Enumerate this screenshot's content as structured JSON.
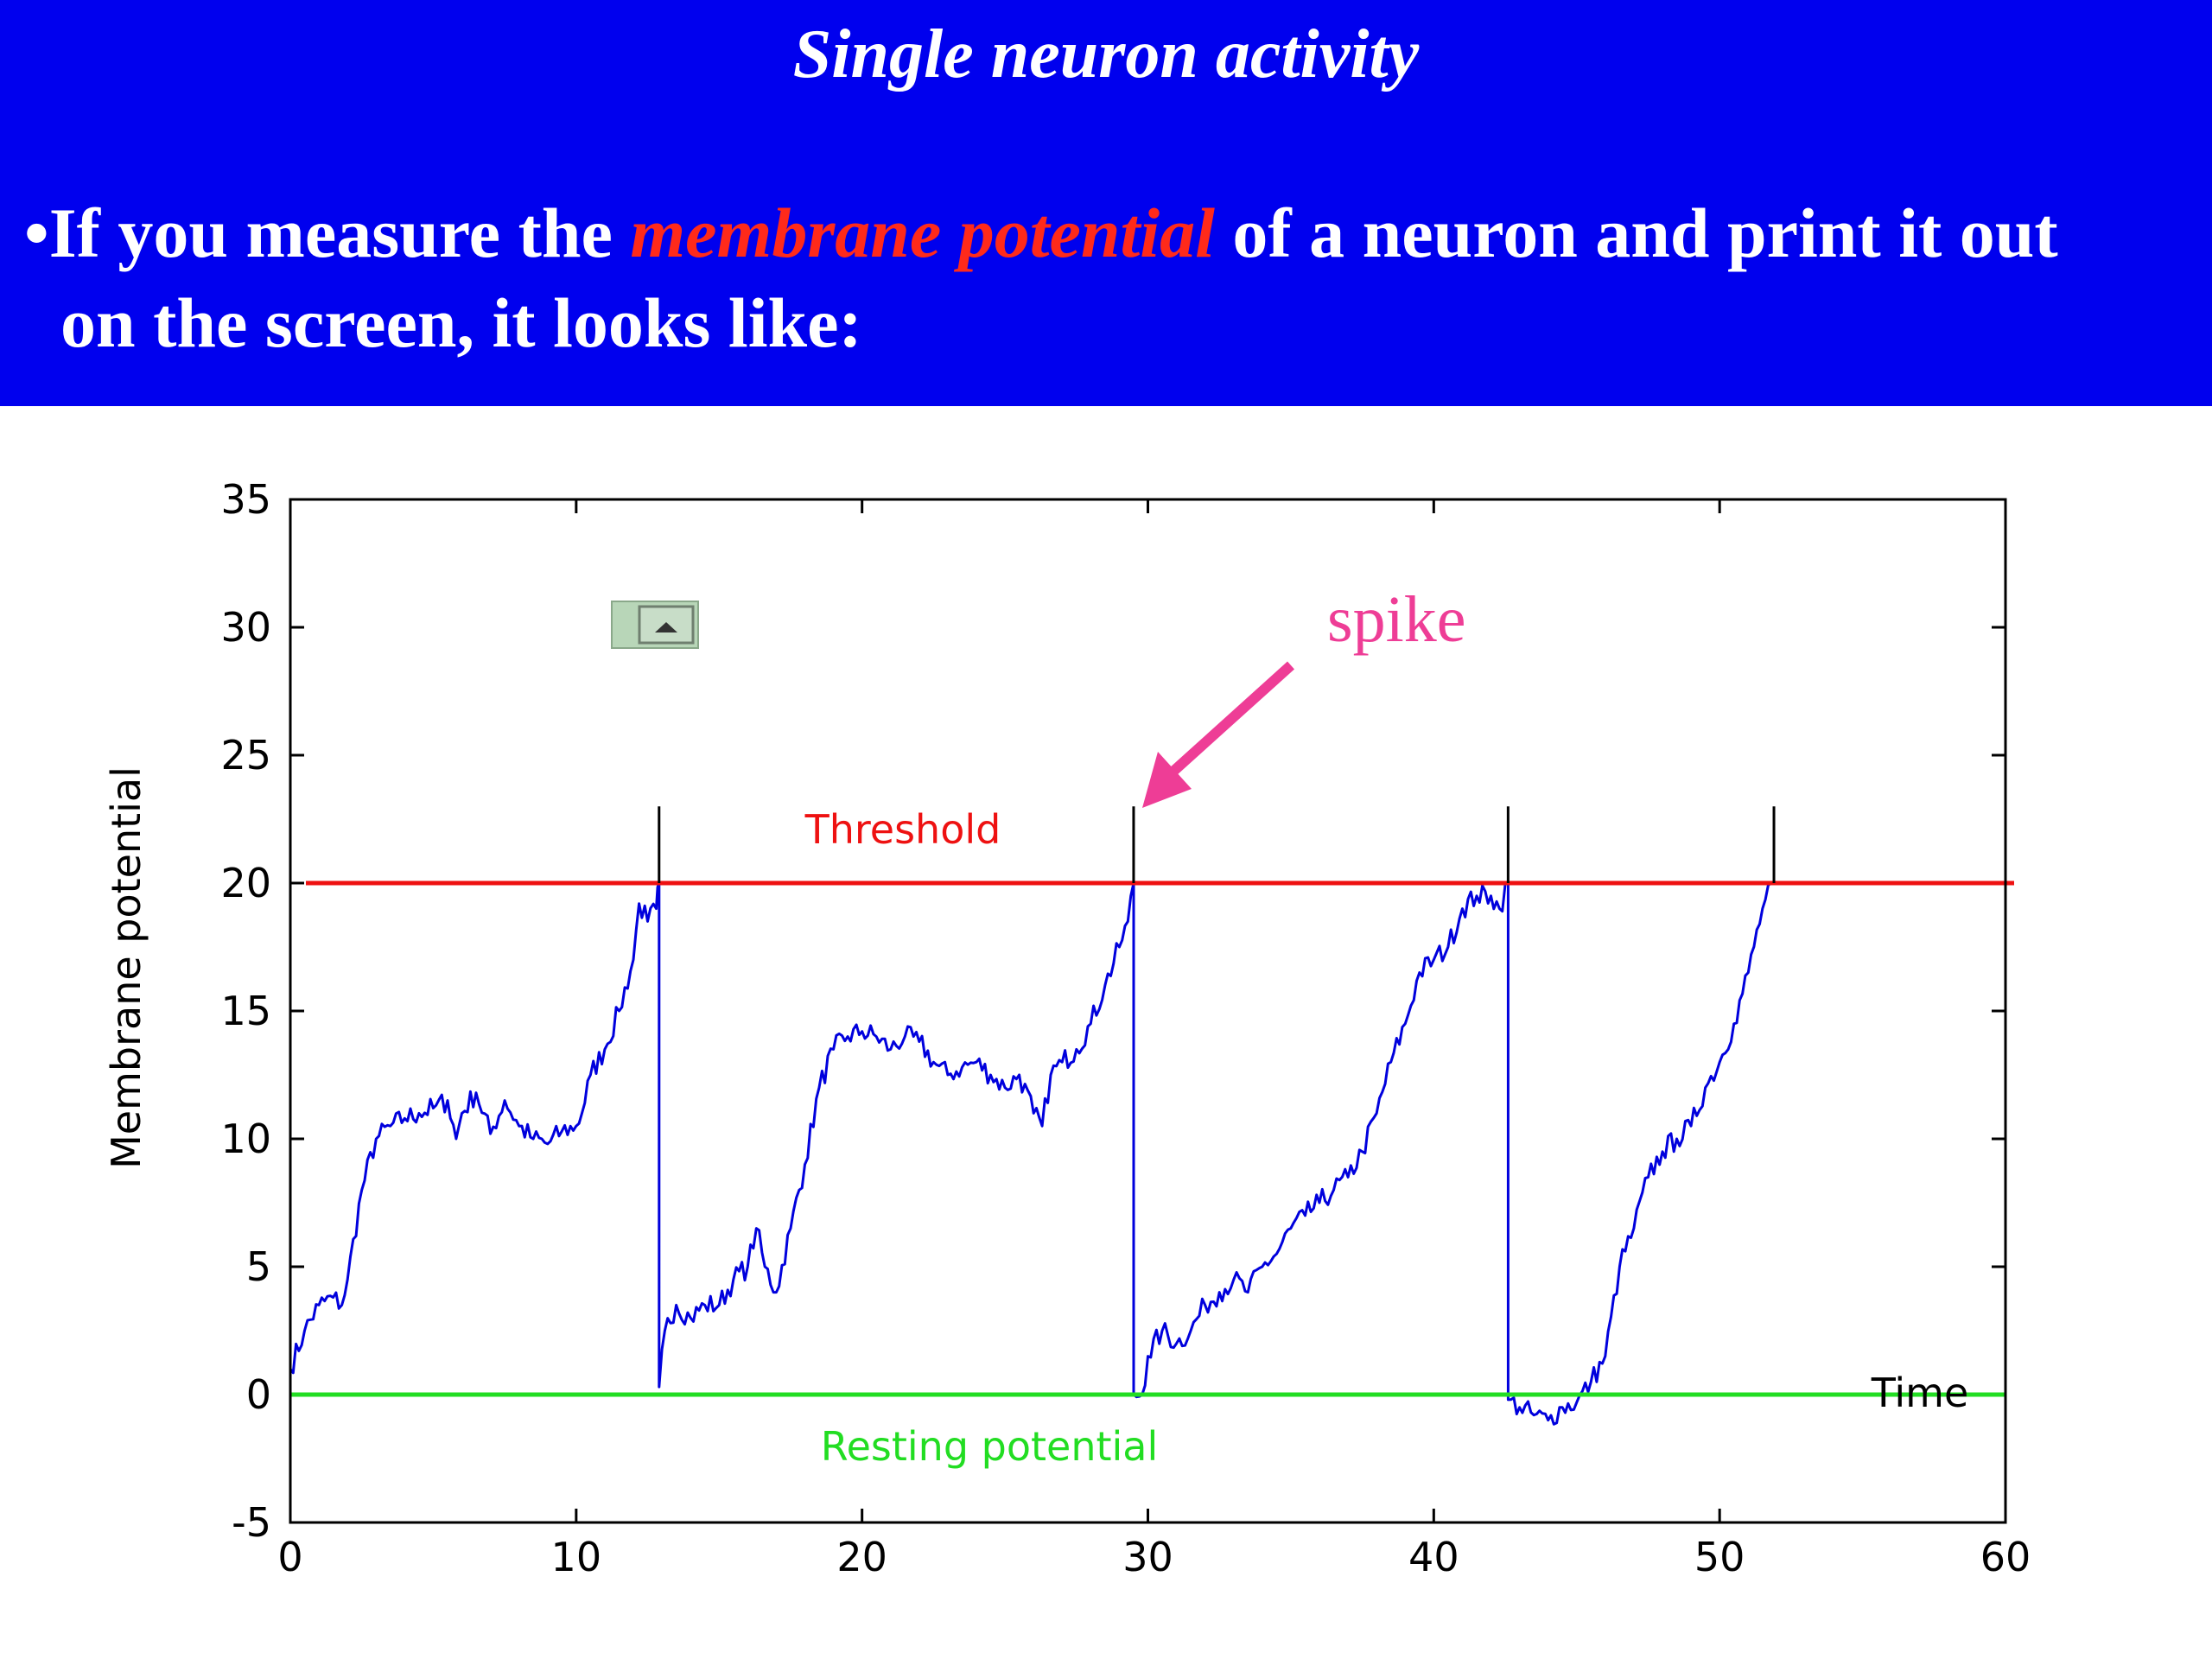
{
  "slide": {
    "title": "Single neuron activity",
    "bullet": "•",
    "text_before": "If you measure the ",
    "text_highlight": "membrane potential",
    "text_after": " of a neuron and print it out",
    "text_line2": "on the screen, it  looks like:"
  },
  "colors": {
    "header_bg": "#0000ee",
    "highlight": "#ff2a1a",
    "trace": "#0000dd",
    "threshold": "#ee1111",
    "resting": "#22dd22",
    "spike_annotation": "#ee3d96"
  },
  "chart_data": {
    "type": "line",
    "title": "",
    "xlabel": "Time",
    "ylabel": "Membrane potential",
    "xlim": [
      0,
      60
    ],
    "ylim": [
      -5,
      35
    ],
    "x_ticks": [
      0,
      10,
      20,
      30,
      40,
      50,
      60
    ],
    "y_ticks": [
      -5,
      0,
      5,
      10,
      15,
      20,
      25,
      30,
      35
    ],
    "grid": false,
    "threshold": {
      "label": "Threshold",
      "value": 20
    },
    "resting": {
      "label": "Resting potential",
      "value": 0
    },
    "spike_times": [
      12.9,
      29.5,
      42.6,
      51.9
    ],
    "spike_peak": 23,
    "annotation": {
      "text": "spike",
      "target_x": 29.5,
      "target_y": 23
    },
    "series": [
      {
        "values": [
          [
            0,
            1
          ],
          [
            0.5,
            2.5
          ],
          [
            1,
            3.5
          ],
          [
            1.5,
            3.8
          ],
          [
            1.8,
            3.5
          ],
          [
            2,
            4.5
          ],
          [
            2.5,
            8
          ],
          [
            3,
            10
          ],
          [
            3.5,
            10.5
          ],
          [
            4,
            10.8
          ],
          [
            4.5,
            11
          ],
          [
            5,
            11.2
          ],
          [
            5.5,
            11.5
          ],
          [
            5.8,
            10
          ],
          [
            6,
            11
          ],
          [
            6.5,
            11.8
          ],
          [
            7,
            10.2
          ],
          [
            7.5,
            11.5
          ],
          [
            8,
            10.5
          ],
          [
            8.5,
            10
          ],
          [
            9,
            9.8
          ],
          [
            9.5,
            10.3
          ],
          [
            10,
            10.5
          ],
          [
            10.2,
            11
          ],
          [
            10.5,
            12.5
          ],
          [
            11,
            13.5
          ],
          [
            11.5,
            15
          ],
          [
            12,
            17
          ],
          [
            12.2,
            19.2
          ],
          [
            12.5,
            18.5
          ],
          [
            12.8,
            19
          ],
          [
            12.9,
            20
          ],
          [
            12.9,
            0.3
          ],
          [
            13.1,
            2.5
          ],
          [
            13.5,
            3.5
          ],
          [
            14,
            3
          ],
          [
            14.5,
            3.5
          ],
          [
            15,
            3.5
          ],
          [
            15.5,
            4.5
          ],
          [
            16,
            5
          ],
          [
            16.3,
            6.5
          ],
          [
            16.6,
            5
          ],
          [
            17,
            4
          ],
          [
            17.5,
            6.5
          ],
          [
            18,
            9
          ],
          [
            18.5,
            12
          ],
          [
            19,
            13.5
          ],
          [
            19.5,
            14
          ],
          [
            20,
            14.2
          ],
          [
            20.5,
            14
          ],
          [
            21,
            13.5
          ],
          [
            21.5,
            14
          ],
          [
            22,
            13.8
          ],
          [
            22.5,
            13
          ],
          [
            23,
            12.5
          ],
          [
            23.5,
            12.8
          ],
          [
            24,
            13
          ],
          [
            24.5,
            12.5
          ],
          [
            25,
            12
          ],
          [
            25.5,
            12.5
          ],
          [
            26,
            11
          ],
          [
            26.3,
            10.5
          ],
          [
            26.6,
            12.5
          ],
          [
            27,
            13
          ],
          [
            27.5,
            13.5
          ],
          [
            28,
            14.5
          ],
          [
            28.5,
            16
          ],
          [
            29,
            17.5
          ],
          [
            29.3,
            18.5
          ],
          [
            29.5,
            20
          ],
          [
            29.5,
            0
          ],
          [
            29.8,
            0
          ],
          [
            30,
            1.5
          ],
          [
            30.5,
            2.5
          ],
          [
            31,
            2
          ],
          [
            31.5,
            2.5
          ],
          [
            32,
            3.5
          ],
          [
            32.5,
            4
          ],
          [
            33,
            4.5
          ],
          [
            33.5,
            4
          ],
          [
            34,
            5
          ],
          [
            34.5,
            5.5
          ],
          [
            35,
            6.5
          ],
          [
            35.5,
            7
          ],
          [
            36,
            7.5
          ],
          [
            36.5,
            8
          ],
          [
            37,
            8.5
          ],
          [
            37.5,
            9.5
          ],
          [
            38,
            11
          ],
          [
            38.5,
            13
          ],
          [
            39,
            14.5
          ],
          [
            39.5,
            16.5
          ],
          [
            40,
            17
          ],
          [
            40.5,
            17.5
          ],
          [
            41,
            19
          ],
          [
            41.5,
            19.5
          ],
          [
            42,
            19.5
          ],
          [
            42.3,
            19
          ],
          [
            42.6,
            20
          ],
          [
            42.6,
            -0.2
          ],
          [
            43,
            -0.5
          ],
          [
            43.5,
            -0.8
          ],
          [
            44,
            -1
          ],
          [
            44.5,
            -0.5
          ],
          [
            45,
            -0.3
          ],
          [
            45.5,
            0.5
          ],
          [
            46,
            1.5
          ],
          [
            46.5,
            5
          ],
          [
            47,
            6.5
          ],
          [
            47.5,
            8.5
          ],
          [
            48,
            9.5
          ],
          [
            48.5,
            10
          ],
          [
            49,
            10.5
          ],
          [
            49.5,
            12
          ],
          [
            50,
            13
          ],
          [
            50.5,
            14.5
          ],
          [
            51,
            16.5
          ],
          [
            51.5,
            19
          ],
          [
            51.9,
            20
          ]
        ]
      }
    ]
  }
}
